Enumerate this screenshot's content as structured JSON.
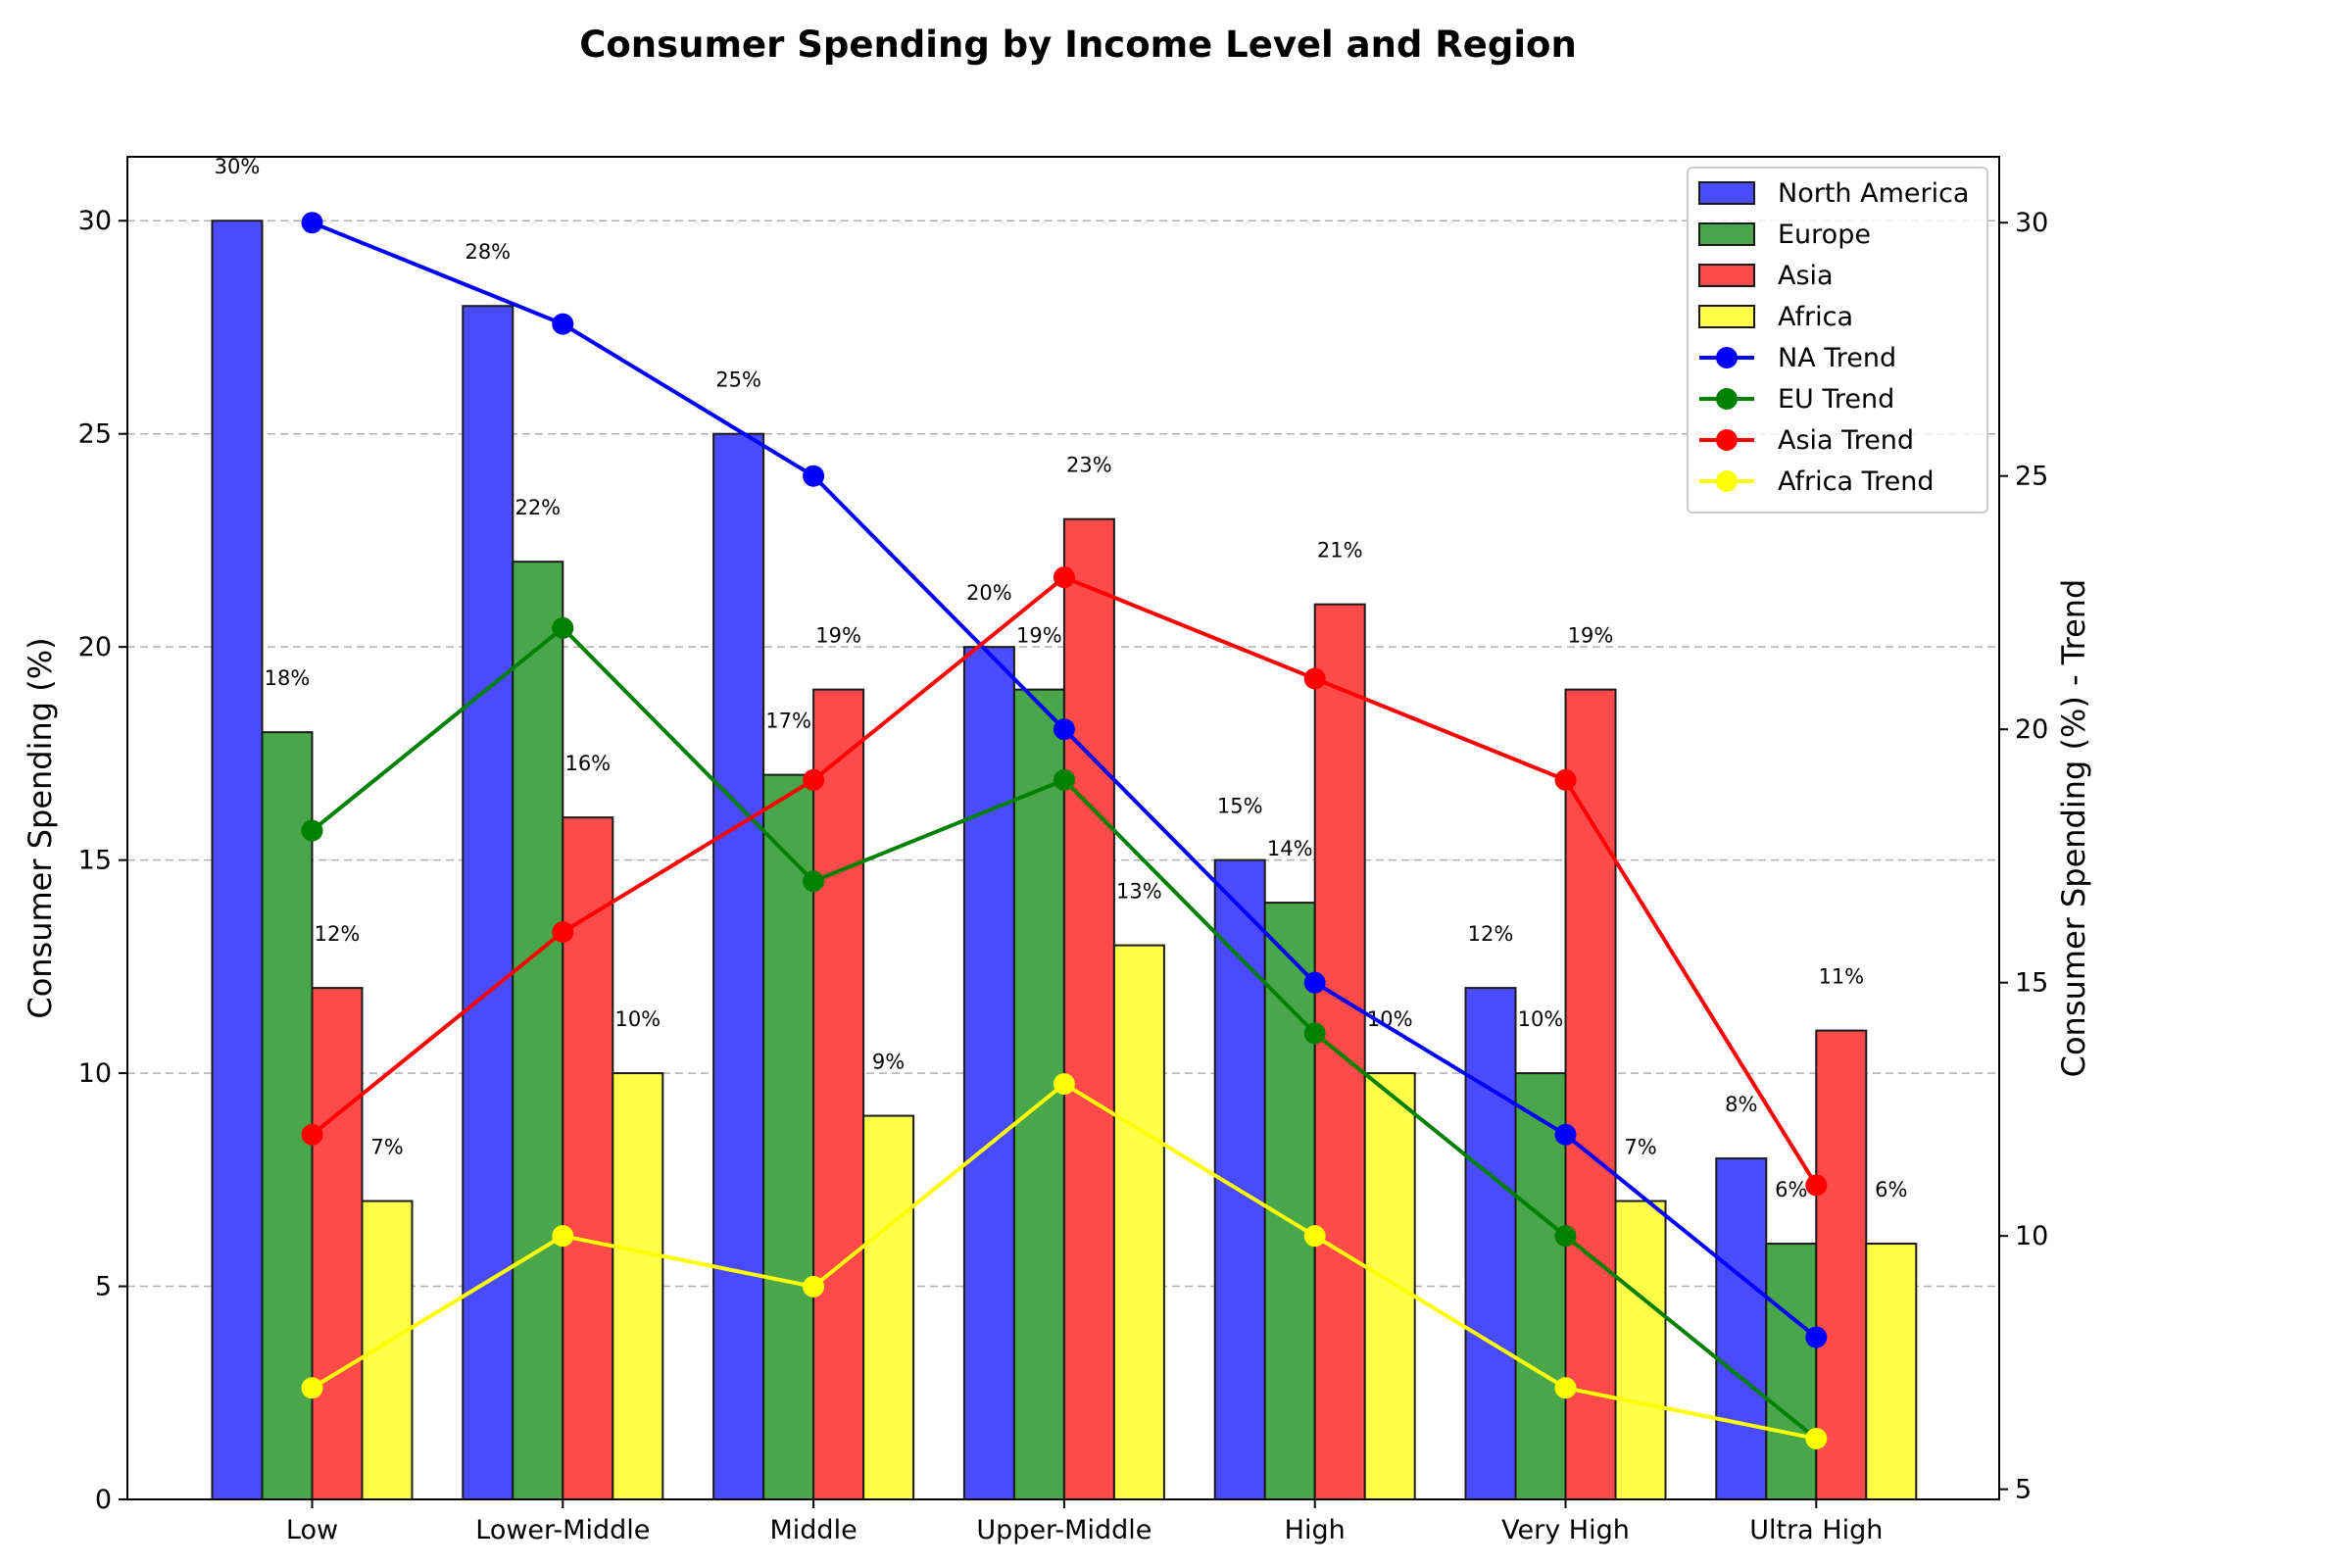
{
  "chart_data": {
    "type": "bar",
    "title": "Consumer Spending by Income Level and Region",
    "ylabel": "Consumer Spending (%)",
    "ylabel_right": "Consumer Spending (%) - Trend",
    "xlabel": "",
    "categories": [
      "Low",
      "Lower-Middle",
      "Middle",
      "Upper-Middle",
      "High",
      "Very High",
      "Ultra High"
    ],
    "ylim": [
      0,
      31.5
    ],
    "yticks": [
      0,
      5,
      10,
      15,
      20,
      25,
      30
    ],
    "ylim_right": [
      4.8,
      31.3
    ],
    "yticks_right": [
      5,
      10,
      15,
      20,
      25,
      30
    ],
    "grid": "y-dashed",
    "legend_position": "top-right",
    "series": [
      {
        "name": "North America",
        "values": [
          30,
          28,
          25,
          20,
          15,
          12,
          8
        ],
        "color": "#4a4aff",
        "labels": [
          "30%",
          "28%",
          "25%",
          "20%",
          "15%",
          "12%",
          "8%"
        ]
      },
      {
        "name": "Europe",
        "values": [
          18,
          22,
          17,
          19,
          14,
          10,
          6
        ],
        "color": "#4aa64a",
        "labels": [
          "18%",
          "22%",
          "17%",
          "19%",
          "14%",
          "10%",
          "6%"
        ]
      },
      {
        "name": "Asia",
        "values": [
          12,
          16,
          19,
          23,
          21,
          19,
          11
        ],
        "color": "#ff4a4a",
        "labels": [
          "12%",
          "16%",
          "19%",
          "23%",
          "21%",
          "19%",
          "11%"
        ]
      },
      {
        "name": "Africa",
        "values": [
          7,
          10,
          9,
          13,
          10,
          7,
          6
        ],
        "color": "#ffff4a",
        "labels": [
          "7%",
          "10%",
          "9%",
          "13%",
          "10%",
          "7%",
          "6%"
        ]
      }
    ],
    "trend_series": [
      {
        "name": "NA Trend",
        "values": [
          30,
          28,
          25,
          20,
          15,
          12,
          8
        ],
        "color": "#0000ff"
      },
      {
        "name": "EU Trend",
        "values": [
          18,
          22,
          17,
          19,
          14,
          10,
          6
        ],
        "color": "#008000"
      },
      {
        "name": "Asia Trend",
        "values": [
          12,
          16,
          19,
          23,
          21,
          19,
          11
        ],
        "color": "#ff0000"
      },
      {
        "name": "Africa Trend",
        "values": [
          7,
          10,
          9,
          13,
          10,
          7,
          6
        ],
        "color": "#ffff00"
      }
    ]
  }
}
